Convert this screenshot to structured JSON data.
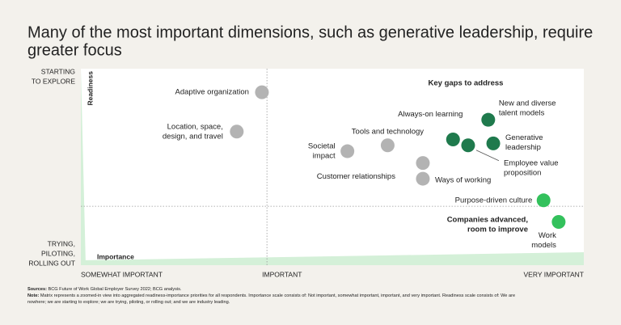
{
  "chart_data": {
    "type": "scatter",
    "title": [
      "Many of the most important dimensions, such as generative leadership, require",
      "greater focus"
    ],
    "x_label": "Importance",
    "y_label": "Readiness",
    "xlim": [
      0,
      100
    ],
    "ylim": [
      0,
      100
    ],
    "xticks": [
      {
        "value": 0,
        "label": "SOMEWHAT IMPORTANT"
      },
      {
        "value": 40,
        "label": "IMPORTANT"
      },
      {
        "value": 100,
        "label": "VERY IMPORTANT"
      }
    ],
    "yticks": [
      {
        "value": 100,
        "label": [
          "STARTING",
          "TO EXPLORE"
        ]
      },
      {
        "value": 0,
        "label": [
          "TRYING,",
          "PILOTING,",
          "ROLLING OUT"
        ]
      }
    ],
    "x_divider": 37,
    "y_divider": 30,
    "series": [
      {
        "color": "#b3b3b3",
        "labels": [
          [
            "Adaptive organization"
          ],
          [
            "Location, space,",
            "design, and travel"
          ],
          [
            "Societal",
            "impact"
          ],
          [
            "Tools and technology"
          ],
          [
            "Customer relationships"
          ],
          [
            "Ways of working"
          ]
        ],
        "x": [
          36,
          31,
          53,
          61,
          68,
          68
        ],
        "values": [
          88,
          68,
          58,
          61,
          52,
          44
        ]
      },
      {
        "color": "#1f7a4d",
        "labels": [
          [
            "Always-on learning"
          ],
          [
            "Employee value",
            "proposition"
          ],
          [
            "New and diverse",
            "talent models"
          ],
          [
            "Generative",
            "leadership"
          ]
        ],
        "x": [
          74,
          77,
          81,
          82
        ],
        "values": [
          64,
          61,
          74,
          62
        ]
      },
      {
        "color": "#33c15c",
        "labels": [
          [
            "Purpose-driven culture"
          ],
          [
            "Work",
            "models"
          ]
        ],
        "x": [
          92,
          95
        ],
        "values": [
          33,
          22
        ]
      }
    ],
    "annotations": [
      {
        "text": [
          "Key gaps to address"
        ],
        "color": "#1f7a4d"
      },
      {
        "text": [
          "Companies advanced,",
          "room to improve"
        ],
        "color": "#33c15c"
      }
    ],
    "footnotes": [
      {
        "label": "Sources:",
        "text": " BCG Future of Work Global Employer Survey 2022; BCG analysis."
      },
      {
        "label": "Note:",
        "text": " Matrix represents a zoomed-in view into aggregated readiness-importance priorities for all respondents. Importance scale consists of: Not important, somewhat important, important, and very important. Readiness scale consists of: We are"
      },
      {
        "text": "nowhere; we are starting to explore; we are trying, piloting, or rolling out; and we are industry leading."
      }
    ]
  }
}
